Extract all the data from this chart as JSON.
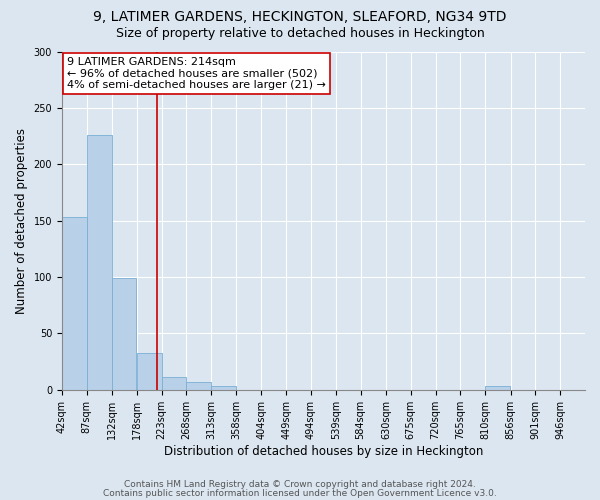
{
  "title1": "9, LATIMER GARDENS, HECKINGTON, SLEAFORD, NG34 9TD",
  "title2": "Size of property relative to detached houses in Heckington",
  "xlabel": "Distribution of detached houses by size in Heckington",
  "ylabel": "Number of detached properties",
  "bar_values": [
    153,
    226,
    99,
    33,
    11,
    7,
    3,
    0,
    0,
    0,
    0,
    0,
    0,
    0,
    0,
    0,
    0,
    3,
    0,
    0,
    0
  ],
  "bin_edges": [
    42,
    87,
    132,
    178,
    223,
    268,
    313,
    358,
    404,
    449,
    494,
    539,
    584,
    630,
    675,
    720,
    765,
    810,
    856,
    901,
    946
  ],
  "bar_color": "#b8d0e8",
  "bar_edgecolor": "#7aafd4",
  "bg_color": "#dce6f0",
  "plot_bg_color": "#dce6f0",
  "grid_color": "#ffffff",
  "vline_x": 214,
  "vline_color": "#cc0000",
  "annotation_text": "9 LATIMER GARDENS: 214sqm\n← 96% of detached houses are smaller (502)\n4% of semi-detached houses are larger (21) →",
  "annotation_box_edgecolor": "#cc0000",
  "annotation_box_facecolor": "#ffffff",
  "ylim": [
    0,
    300
  ],
  "yticks": [
    0,
    50,
    100,
    150,
    200,
    250,
    300
  ],
  "footer1": "Contains HM Land Registry data © Crown copyright and database right 2024.",
  "footer2": "Contains public sector information licensed under the Open Government Licence v3.0.",
  "title1_fontsize": 10,
  "title2_fontsize": 9,
  "xlabel_fontsize": 8.5,
  "ylabel_fontsize": 8.5,
  "tick_fontsize": 7,
  "annotation_fontsize": 8,
  "footer_fontsize": 6.5
}
